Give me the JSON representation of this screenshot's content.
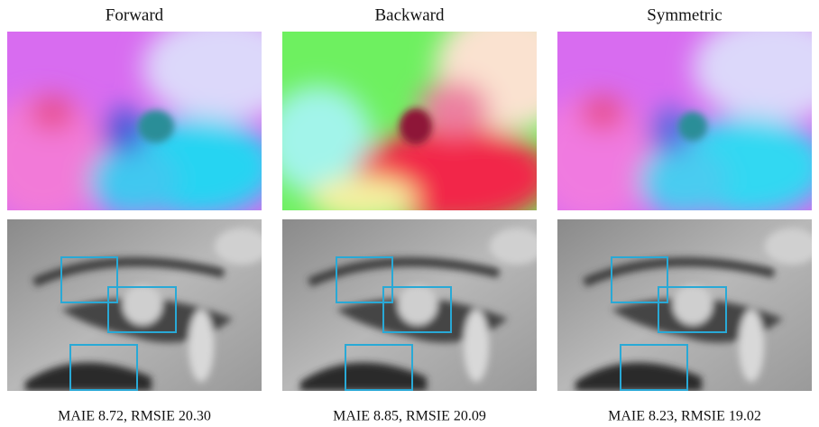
{
  "columns": [
    {
      "title": "Forward",
      "caption": "MAIE 8.72, RMSIE 20.30"
    },
    {
      "title": "Backward",
      "caption": "MAIE 8.85, RMSIE 20.09"
    },
    {
      "title": "Symmetric",
      "caption": "MAIE 8.23, RMSIE 19.02"
    }
  ]
}
